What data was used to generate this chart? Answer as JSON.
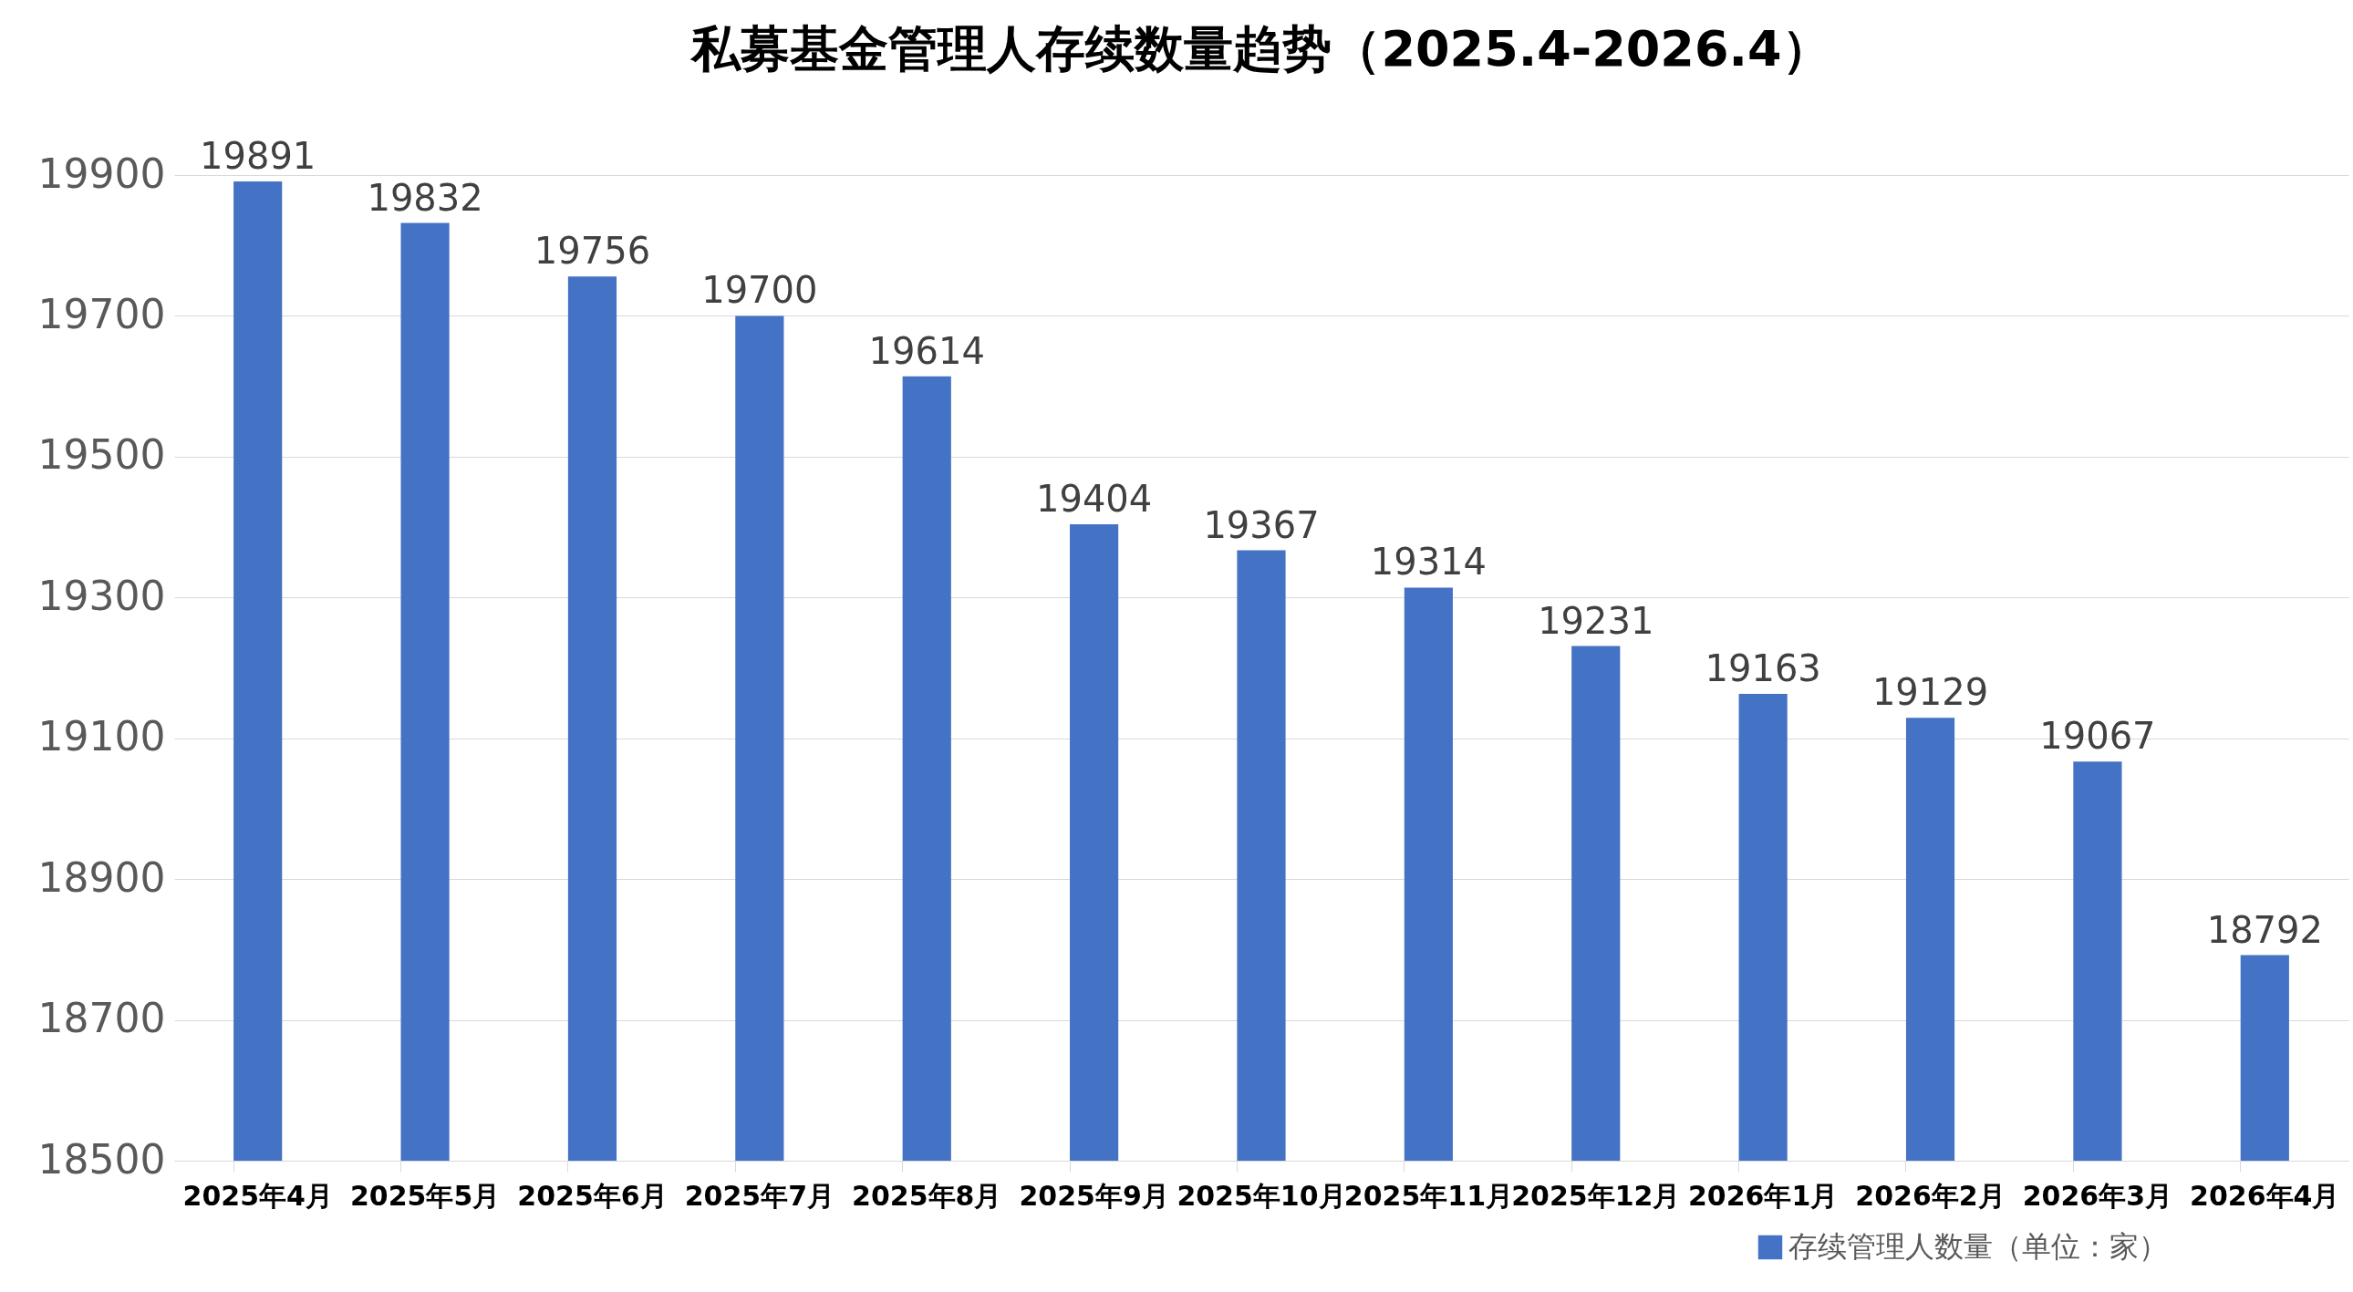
{
  "chart_data": {
    "type": "bar",
    "title": "私募基金管理人存续数量趋势（2025.4-2026.4）",
    "categories": [
      "2025年4月",
      "2025年5月",
      "2025年6月",
      "2025年7月",
      "2025年8月",
      "2025年9月",
      "2025年10月",
      "2025年11月",
      "2025年12月",
      "2026年1月",
      "2026年2月",
      "2026年3月",
      "2026年4月"
    ],
    "series": [
      {
        "name": "存续管理人数量（单位：家）",
        "color": "#4472c4",
        "values": [
          19891,
          19832,
          19756,
          19700,
          19614,
          19404,
          19367,
          19314,
          19231,
          19163,
          19129,
          19067,
          18792
        ]
      }
    ],
    "ylim": [
      18500,
      19900
    ],
    "yticks": [
      18500,
      18700,
      18900,
      19100,
      19300,
      19500,
      19700,
      19900
    ],
    "grid": "y",
    "data_labels": true,
    "legend": "bottom right"
  }
}
